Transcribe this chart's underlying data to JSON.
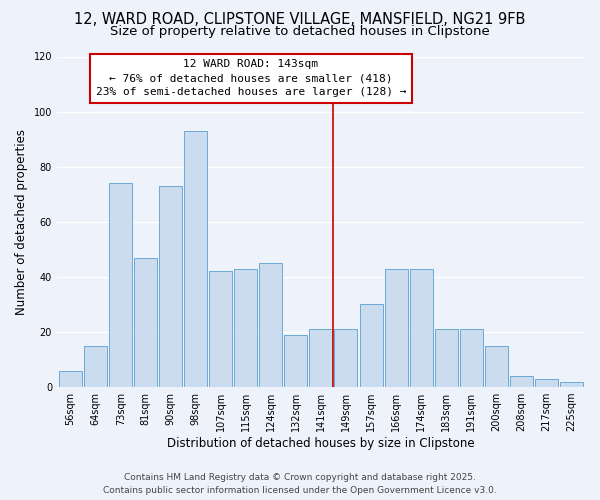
{
  "title": "12, WARD ROAD, CLIPSTONE VILLAGE, MANSFIELD, NG21 9FB",
  "subtitle": "Size of property relative to detached houses in Clipstone",
  "xlabel": "Distribution of detached houses by size in Clipstone",
  "ylabel": "Number of detached properties",
  "bar_labels": [
    "56sqm",
    "64sqm",
    "73sqm",
    "81sqm",
    "90sqm",
    "98sqm",
    "107sqm",
    "115sqm",
    "124sqm",
    "132sqm",
    "141sqm",
    "149sqm",
    "157sqm",
    "166sqm",
    "174sqm",
    "183sqm",
    "191sqm",
    "200sqm",
    "208sqm",
    "217sqm",
    "225sqm"
  ],
  "bar_values": [
    6,
    15,
    74,
    47,
    73,
    93,
    42,
    43,
    45,
    19,
    21,
    21,
    30,
    43,
    43,
    21,
    21,
    15,
    4,
    3,
    2
  ],
  "bar_color": "#ccdcef",
  "bar_edge_color": "#6aaad4",
  "vline_color": "#cc0000",
  "annotation_title": "12 WARD ROAD: 143sqm",
  "annotation_line1": "← 76% of detached houses are smaller (418)",
  "annotation_line2": "23% of semi-detached houses are larger (128) →",
  "annotation_box_color": "#ffffff",
  "annotation_box_edge": "#cc0000",
  "ylim": [
    0,
    120
  ],
  "yticks": [
    0,
    20,
    40,
    60,
    80,
    100,
    120
  ],
  "footer1": "Contains HM Land Registry data © Crown copyright and database right 2025.",
  "footer2": "Contains public sector information licensed under the Open Government Licence v3.0.",
  "bg_color": "#eef2fa",
  "grid_color": "#ffffff",
  "title_fontsize": 10.5,
  "subtitle_fontsize": 9.5,
  "axis_label_fontsize": 8.5,
  "tick_fontsize": 7,
  "footer_fontsize": 6.5,
  "ann_fontsize": 8
}
